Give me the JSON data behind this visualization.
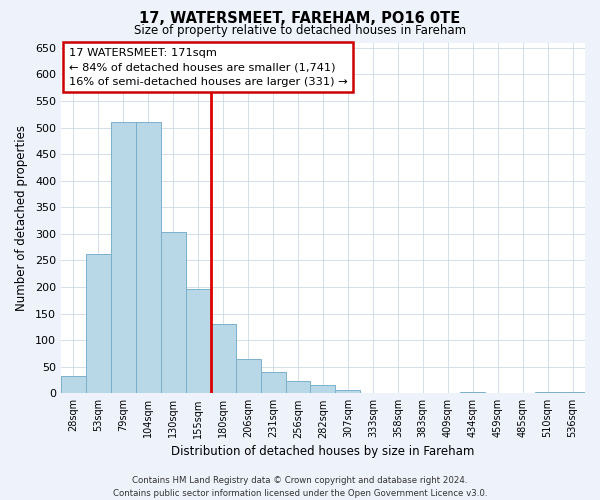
{
  "title": "17, WATERSMEET, FAREHAM, PO16 0TE",
  "subtitle": "Size of property relative to detached houses in Fareham",
  "xlabel": "Distribution of detached houses by size in Fareham",
  "ylabel": "Number of detached properties",
  "bar_labels": [
    "28sqm",
    "53sqm",
    "79sqm",
    "104sqm",
    "130sqm",
    "155sqm",
    "180sqm",
    "206sqm",
    "231sqm",
    "256sqm",
    "282sqm",
    "307sqm",
    "333sqm",
    "358sqm",
    "383sqm",
    "409sqm",
    "434sqm",
    "459sqm",
    "485sqm",
    "510sqm",
    "536sqm"
  ],
  "bar_values": [
    33,
    263,
    511,
    511,
    303,
    197,
    130,
    65,
    40,
    23,
    15,
    7,
    0,
    0,
    0,
    0,
    2,
    0,
    0,
    2,
    2
  ],
  "bar_color": "#b8d8e8",
  "bar_edge_color": "#7ab0cc",
  "highlight_color": "#dd0000",
  "vline_index": 5.5,
  "annotation_title": "17 WATERSMEET: 171sqm",
  "annotation_line1": "← 84% of detached houses are smaller (1,741)",
  "annotation_line2": "16% of semi-detached houses are larger (331) →",
  "annotation_box_color": "#ffffff",
  "annotation_box_edge": "#cc0000",
  "ylim": [
    0,
    660
  ],
  "yticks": [
    0,
    50,
    100,
    150,
    200,
    250,
    300,
    350,
    400,
    450,
    500,
    550,
    600,
    650
  ],
  "footer_line1": "Contains HM Land Registry data © Crown copyright and database right 2024.",
  "footer_line2": "Contains public sector information licensed under the Open Government Licence v3.0.",
  "background_color": "#eef2fa",
  "plot_bg_color": "#ffffff",
  "grid_color": "#ccd9e8"
}
